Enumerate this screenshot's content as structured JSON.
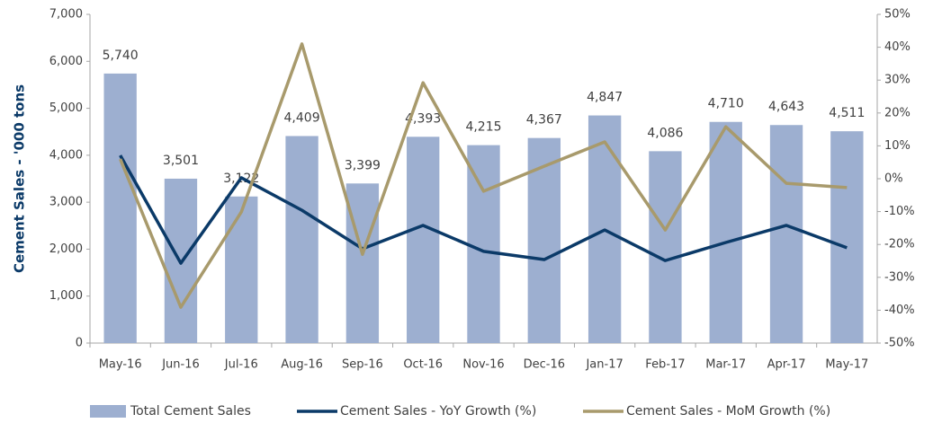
{
  "chart_data": {
    "type": "bar_line",
    "y_label": "Cement Sales  - '000 tons",
    "categories": [
      "May-16",
      "Jun-16",
      "Jul-16",
      "Aug-16",
      "Sep-16",
      "Oct-16",
      "Nov-16",
      "Dec-16",
      "Jan-17",
      "Feb-17",
      "Mar-17",
      "Apr-17",
      "May-17"
    ],
    "series": [
      {
        "name": "Total Cement Sales",
        "type": "bar",
        "color": "#9dafd0",
        "values": [
          5740,
          3501,
          3122,
          4409,
          3399,
          4393,
          4215,
          4367,
          4847,
          4086,
          4710,
          4643,
          4511
        ],
        "value_labels": [
          "5,740",
          "3,501",
          "3,122",
          "4,409",
          "3,399",
          "4,393",
          "4,215",
          "4,367",
          "4,847",
          "4,086",
          "4,710",
          "4,643",
          "4,511"
        ]
      },
      {
        "name": "Cement Sales - YoY Growth (%)",
        "type": "line",
        "axis": "y2",
        "color": "#0b3a68",
        "values": [
          7.1,
          -25.7,
          0.3,
          -9.6,
          -21.3,
          -14.2,
          -22.1,
          -24.6,
          -15.6,
          -24.9,
          -19.4,
          -14.2,
          -21.0
        ]
      },
      {
        "name": "Cement Sales - MoM Growth (%)",
        "type": "line",
        "axis": "y2",
        "color": "#a89a6c",
        "values": [
          6.0,
          -39.1,
          -10.1,
          41.0,
          -23.0,
          29.2,
          -3.8,
          3.8,
          11.2,
          -15.6,
          15.8,
          -1.4,
          -2.7
        ]
      }
    ],
    "ylim": [
      0,
      7000
    ],
    "yticks": [
      0,
      {
        "value": 1000,
        "label": "1,000"
      },
      {
        "value": 2000,
        "label": "2,000"
      },
      {
        "value": 3000,
        "label": "3,000"
      },
      {
        "value": 4000,
        "label": "4,000"
      },
      {
        "value": 5000,
        "label": "5,000"
      },
      {
        "value": 6000,
        "label": "6,000"
      },
      {
        "value": 7000,
        "label": "7,000"
      }
    ],
    "y2lim": [
      -50,
      50
    ],
    "y2ticks": [
      {
        "value": -50,
        "label": "-50%"
      },
      {
        "value": -40,
        "label": "-40%"
      },
      {
        "value": -30,
        "label": "-30%"
      },
      {
        "value": -20,
        "label": "-20%"
      },
      {
        "value": -10,
        "label": "-10%"
      },
      {
        "value": 0,
        "label": "0%"
      },
      {
        "value": 10,
        "label": "10%"
      },
      {
        "value": 20,
        "label": "20%"
      },
      {
        "value": 30,
        "label": "30%"
      },
      {
        "value": 40,
        "label": "40%"
      },
      {
        "value": 50,
        "label": "50%"
      }
    ],
    "legend": "bottom"
  }
}
